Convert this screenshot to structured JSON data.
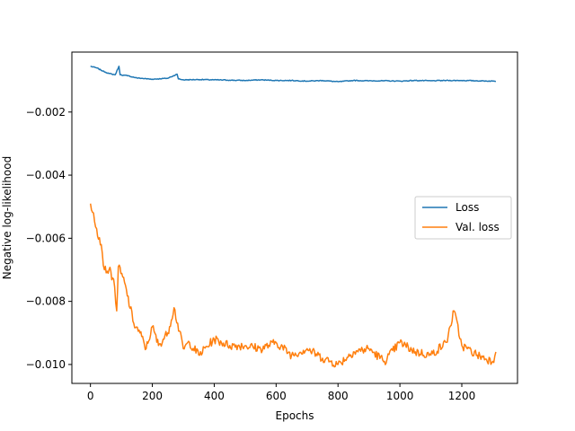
{
  "chart_data": {
    "type": "line",
    "title": "",
    "xlabel": "Epochs",
    "ylabel": "Negative log-likelihood",
    "xlim": [
      -60,
      1380
    ],
    "ylim": [
      -0.0106,
      -0.0001
    ],
    "x_ticks": [
      0,
      200,
      400,
      600,
      800,
      1000,
      1200
    ],
    "x_tick_labels": [
      "0",
      "200",
      "400",
      "600",
      "800",
      "1000",
      "1200"
    ],
    "y_ticks": [
      -0.002,
      -0.004,
      -0.006,
      -0.008,
      -0.01
    ],
    "y_tick_labels": [
      "−0.002",
      "−0.004",
      "−0.006",
      "−0.008",
      "−0.010"
    ],
    "grid": false,
    "legend_position": "center-right",
    "series": [
      {
        "name": "Loss",
        "color": "#1f77b4",
        "points": [
          [
            0,
            -0.00055
          ],
          [
            20,
            -0.0006
          ],
          [
            40,
            -0.0007
          ],
          [
            60,
            -0.00078
          ],
          [
            80,
            -0.00082
          ],
          [
            92,
            -0.00055
          ],
          [
            96,
            -0.00082
          ],
          [
            120,
            -0.00085
          ],
          [
            150,
            -0.00092
          ],
          [
            200,
            -0.00096
          ],
          [
            250,
            -0.00093
          ],
          [
            280,
            -0.0008
          ],
          [
            284,
            -0.00095
          ],
          [
            300,
            -0.00098
          ],
          [
            350,
            -0.00097
          ],
          [
            400,
            -0.00098
          ],
          [
            450,
            -0.00099
          ],
          [
            500,
            -0.001
          ],
          [
            550,
            -0.00098
          ],
          [
            600,
            -0.001
          ],
          [
            650,
            -0.001
          ],
          [
            700,
            -0.00102
          ],
          [
            750,
            -0.001
          ],
          [
            800,
            -0.00104
          ],
          [
            850,
            -0.001
          ],
          [
            900,
            -0.00101
          ],
          [
            950,
            -0.00101
          ],
          [
            1000,
            -0.00102
          ],
          [
            1050,
            -0.001
          ],
          [
            1100,
            -0.00101
          ],
          [
            1150,
            -0.001
          ],
          [
            1200,
            -0.001
          ],
          [
            1250,
            -0.00101
          ],
          [
            1300,
            -0.00102
          ],
          [
            1310,
            -0.00103
          ]
        ]
      },
      {
        "name": "Val. loss",
        "color": "#ff7f0e",
        "points": [
          [
            0,
            -0.0049
          ],
          [
            10,
            -0.0052
          ],
          [
            20,
            -0.0057
          ],
          [
            35,
            -0.0062
          ],
          [
            45,
            -0.007
          ],
          [
            60,
            -0.007
          ],
          [
            75,
            -0.0073
          ],
          [
            85,
            -0.0083
          ],
          [
            90,
            -0.0069
          ],
          [
            110,
            -0.0074
          ],
          [
            140,
            -0.0087
          ],
          [
            160,
            -0.009
          ],
          [
            180,
            -0.0095
          ],
          [
            200,
            -0.0088
          ],
          [
            220,
            -0.0094
          ],
          [
            250,
            -0.009
          ],
          [
            270,
            -0.0082
          ],
          [
            300,
            -0.0095
          ],
          [
            320,
            -0.0093
          ],
          [
            350,
            -0.0097
          ],
          [
            400,
            -0.0092
          ],
          [
            450,
            -0.0094
          ],
          [
            500,
            -0.0094
          ],
          [
            550,
            -0.0095
          ],
          [
            600,
            -0.0093
          ],
          [
            650,
            -0.0097
          ],
          [
            700,
            -0.0095
          ],
          [
            750,
            -0.0098
          ],
          [
            800,
            -0.01
          ],
          [
            850,
            -0.0096
          ],
          [
            900,
            -0.0095
          ],
          [
            950,
            -0.0099
          ],
          [
            1000,
            -0.0093
          ],
          [
            1050,
            -0.0096
          ],
          [
            1100,
            -0.0097
          ],
          [
            1150,
            -0.0093
          ],
          [
            1175,
            -0.0083
          ],
          [
            1200,
            -0.0094
          ],
          [
            1250,
            -0.0097
          ],
          [
            1300,
            -0.0099
          ],
          [
            1310,
            -0.0096
          ]
        ]
      }
    ]
  }
}
